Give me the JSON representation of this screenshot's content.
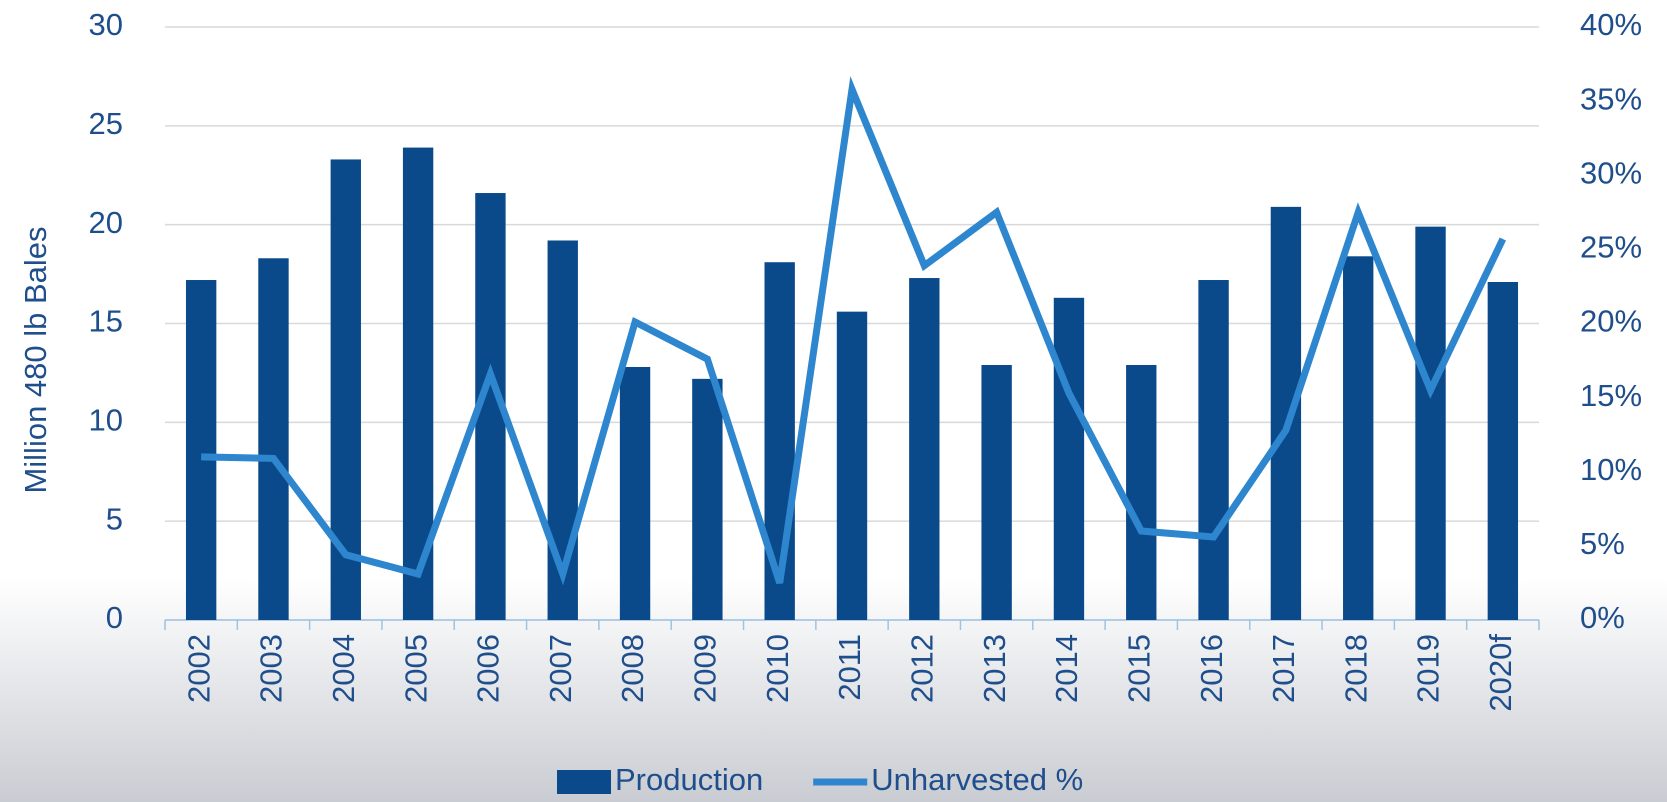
{
  "chart_data": {
    "type": "bar_line",
    "y_label": "Million 480 lb Bales",
    "categories": [
      "2002",
      "2003",
      "2004",
      "2005",
      "2006",
      "2007",
      "2008",
      "2009",
      "2010",
      "2011",
      "2012",
      "2013",
      "2014",
      "2015",
      "2016",
      "2017",
      "2018",
      "2019",
      "2020f"
    ],
    "series": [
      {
        "name": "Production",
        "color": "#0b4a8a",
        "type": "bar",
        "values": [
          17.2,
          18.3,
          23.3,
          23.9,
          21.6,
          19.2,
          12.8,
          12.2,
          18.1,
          15.6,
          17.3,
          12.9,
          16.3,
          12.9,
          17.2,
          20.9,
          18.4,
          19.9,
          17.1
        ]
      },
      {
        "name": "Unharvested %",
        "color": "#2e86cf",
        "type": "line",
        "axis": "y2",
        "values": [
          11.0,
          10.9,
          4.4,
          3.1,
          16.6,
          3.1,
          20.1,
          17.6,
          2.5,
          35.8,
          23.9,
          27.5,
          15.3,
          6.0,
          5.6,
          12.8,
          27.5,
          15.5,
          25.7
        ]
      }
    ],
    "ylim": [
      0,
      30
    ],
    "yticks": [
      0,
      5,
      10,
      15,
      20,
      25,
      30
    ],
    "y2lim": [
      0,
      40
    ],
    "y2ticks": [
      {
        "value": 0,
        "label": "0%"
      },
      {
        "value": 5,
        "label": "5%"
      },
      {
        "value": 10,
        "label": "10%"
      },
      {
        "value": 15,
        "label": "15%"
      },
      {
        "value": 20,
        "label": "20%"
      },
      {
        "value": 25,
        "label": "25%"
      },
      {
        "value": 30,
        "label": "30%"
      },
      {
        "value": 35,
        "label": "35%"
      },
      {
        "value": 40,
        "label": "40%"
      }
    ],
    "grid": true,
    "legend": "bottom"
  }
}
